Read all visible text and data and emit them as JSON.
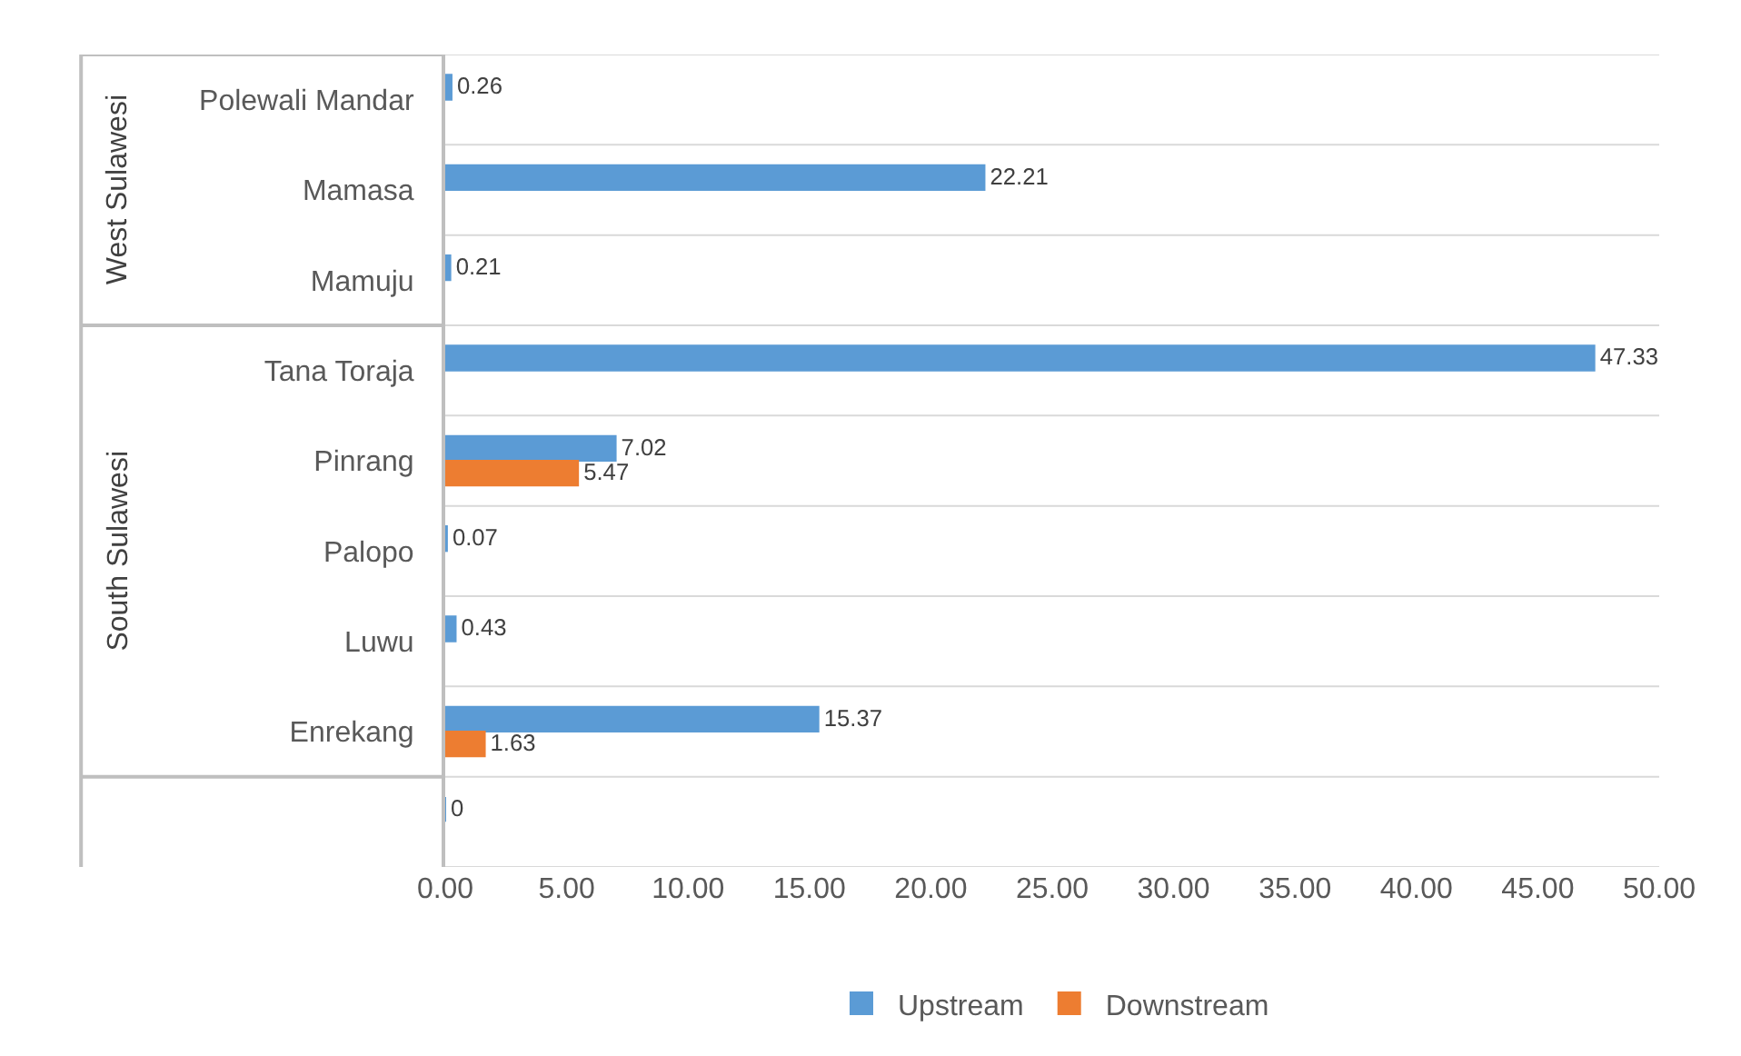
{
  "chart_data": {
    "type": "bar",
    "orientation": "horizontal",
    "categories": [
      "Polewali Mandar",
      "Mamasa",
      "Mamuju",
      "Tana Toraja",
      "Pinrang",
      "Palopo",
      "Luwu",
      "Enrekang",
      null
    ],
    "series": [
      {
        "name": "Upstream",
        "color": "#5b9bd5",
        "values": [
          0.26,
          22.21,
          0.21,
          47.33,
          7.02,
          0.07,
          0.43,
          15.37,
          0
        ],
        "value_labels": [
          "0.26",
          "22.21",
          "0.21",
          "47.33",
          "7.02",
          "0.07",
          "0.43",
          "15.37",
          "0"
        ]
      },
      {
        "name": "Downstream",
        "color": "#ed7d31",
        "values": [
          null,
          null,
          null,
          null,
          5.47,
          null,
          null,
          1.63,
          null
        ],
        "value_labels": [
          null,
          null,
          null,
          null,
          "5.47",
          null,
          null,
          "1.63",
          null
        ]
      }
    ],
    "xlim": [
      0,
      50
    ],
    "xticks": [
      {
        "value": 0,
        "label": "0.00"
      },
      {
        "value": 5,
        "label": "5.00"
      },
      {
        "value": 10,
        "label": "10.00"
      },
      {
        "value": 15,
        "label": "15.00"
      },
      {
        "value": 20,
        "label": "20.00"
      },
      {
        "value": 25,
        "label": "25.00"
      },
      {
        "value": 30,
        "label": "30.00"
      },
      {
        "value": 35,
        "label": "35.00"
      },
      {
        "value": 40,
        "label": "40.00"
      },
      {
        "value": 45,
        "label": "45.00"
      },
      {
        "value": 50,
        "label": "50.00"
      }
    ],
    "annotations": [
      "West Sulawesi",
      "South Sulawesi"
    ],
    "grid": "y",
    "legend": "bottom"
  }
}
